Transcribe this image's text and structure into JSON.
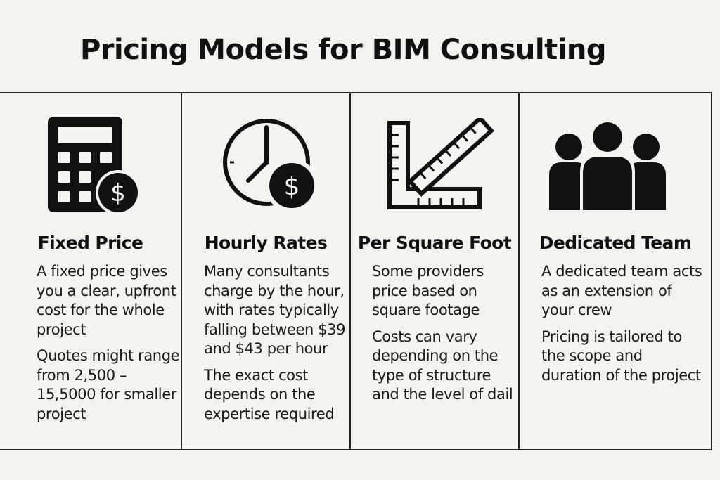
{
  "title": "Pricing Models for BIM Consulting",
  "colors": {
    "background": "#f4f3ef",
    "ink": "#111111"
  },
  "columns": [
    {
      "icon": "calculator-dollar-icon",
      "heading": "Fixed Price",
      "paragraphs": [
        "A fixed price gives you a clear, upfront cost for the whole project",
        "Quotes might range from 2,500 –15,5000 for smaller project"
      ]
    },
    {
      "icon": "clock-dollar-icon",
      "heading": "Hourly Rates",
      "paragraphs": [
        "Many consultants charge by the hour, with rates typically falling between $39 and $43 per hour",
        "The exact cost depends on the expertise required"
      ]
    },
    {
      "icon": "ruler-square-icon",
      "heading": "Per Square Foot",
      "paragraphs": [
        "Some providers price based on square footage",
        "Costs can vary depending on the type of structure and the level of dail"
      ]
    },
    {
      "icon": "team-people-icon",
      "heading": "Dedicated Team",
      "paragraphs": [
        "A dedicated team acts as an extension of your crew",
        "Pricing is tailored to the scope and duration of the project"
      ]
    }
  ]
}
